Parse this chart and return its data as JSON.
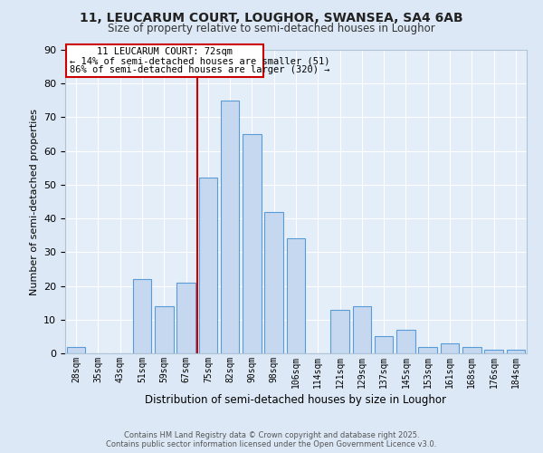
{
  "title1": "11, LEUCARUM COURT, LOUGHOR, SWANSEA, SA4 6AB",
  "title2": "Size of property relative to semi-detached houses in Loughor",
  "xlabel": "Distribution of semi-detached houses by size in Loughor",
  "ylabel": "Number of semi-detached properties",
  "bin_labels": [
    "28sqm",
    "35sqm",
    "43sqm",
    "51sqm",
    "59sqm",
    "67sqm",
    "75sqm",
    "82sqm",
    "90sqm",
    "98sqm",
    "106sqm",
    "114sqm",
    "121sqm",
    "129sqm",
    "137sqm",
    "145sqm",
    "153sqm",
    "161sqm",
    "168sqm",
    "176sqm",
    "184sqm"
  ],
  "bar_values": [
    2,
    0,
    0,
    22,
    14,
    21,
    52,
    75,
    65,
    42,
    34,
    0,
    13,
    14,
    5,
    7,
    2,
    3,
    2,
    1,
    1
  ],
  "bar_color": "#c5d8f0",
  "bar_edge_color": "#5b9bd5",
  "background_color": "#dce8f5",
  "plot_bg_color": "#e4eef8",
  "grid_color": "#ffffff",
  "vline_color": "#cc0000",
  "annotation_title": "11 LEUCARUM COURT: 72sqm",
  "annotation_line1": "← 14% of semi-detached houses are smaller (51)",
  "annotation_line2": "86% of semi-detached houses are larger (320) →",
  "footer1": "Contains HM Land Registry data © Crown copyright and database right 2025.",
  "footer2": "Contains public sector information licensed under the Open Government Licence v3.0.",
  "ylim": [
    0,
    90
  ],
  "yticks": [
    0,
    10,
    20,
    30,
    40,
    50,
    60,
    70,
    80,
    90
  ],
  "vline_bar_index": 6
}
